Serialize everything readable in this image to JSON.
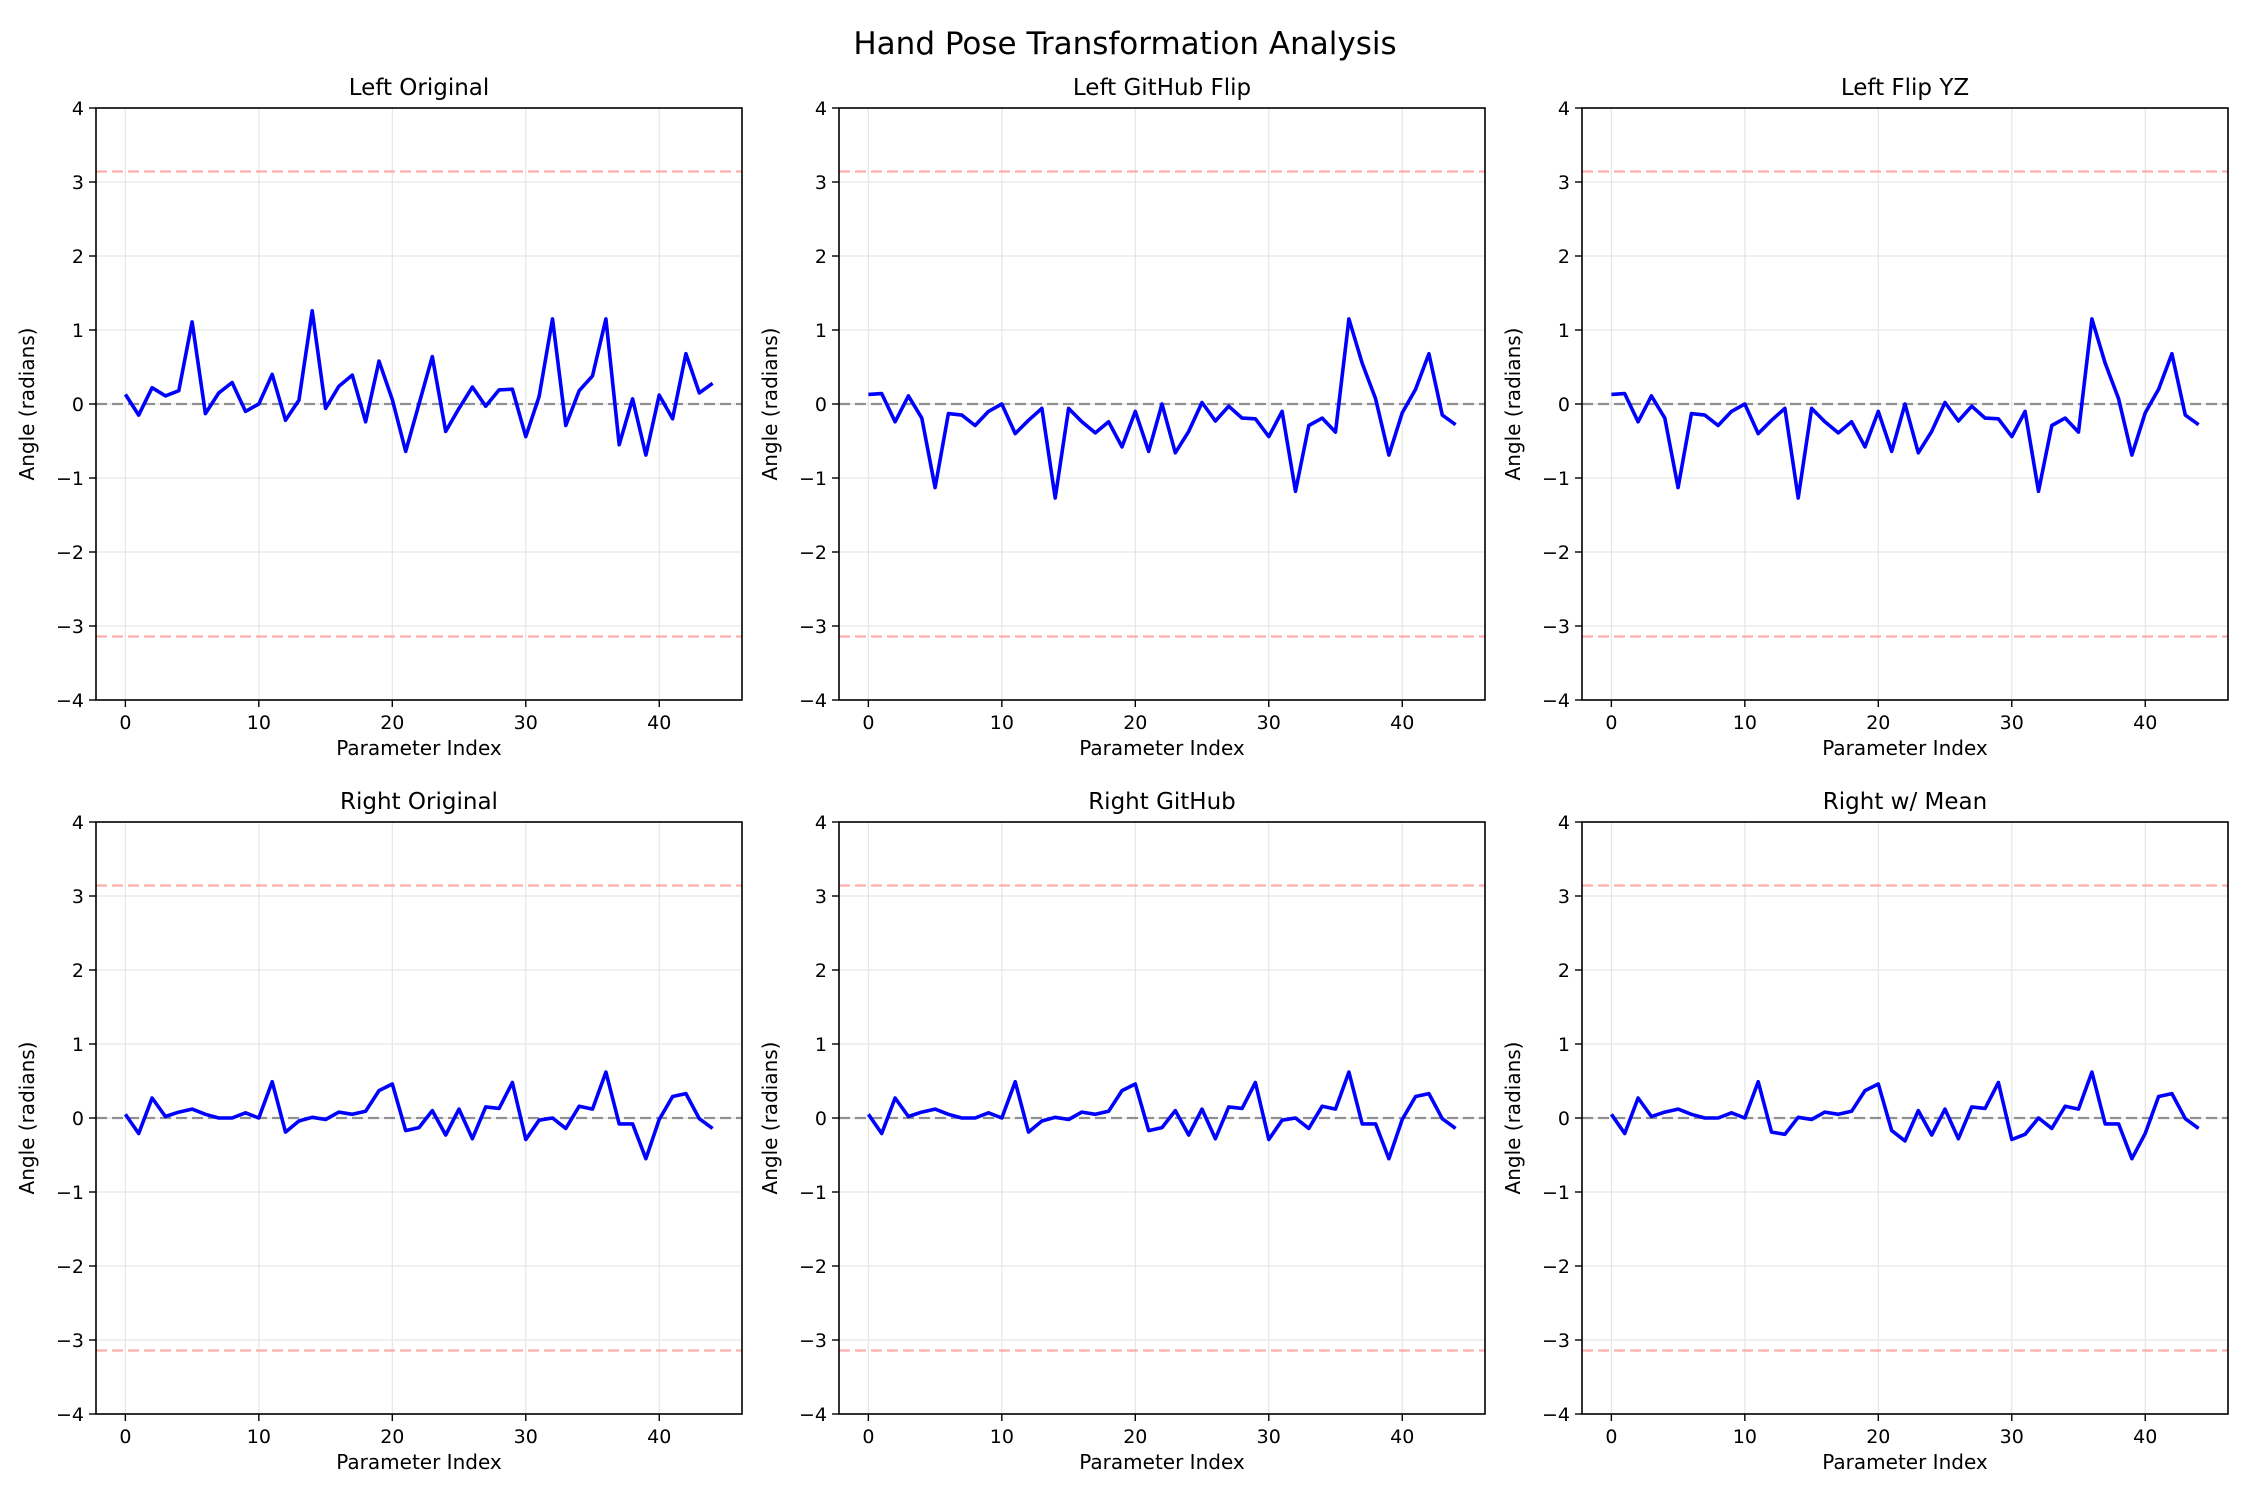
{
  "figure": {
    "title": "Hand Pose Transformation Analysis"
  },
  "colors": {
    "series": "#0000ff",
    "zero_line": "#808080",
    "pi_lines": "#ff9999",
    "grid": "#e6e6e6",
    "axes": "#000000"
  },
  "chart_data": [
    {
      "type": "line",
      "title": "Left Original",
      "xlabel": "Parameter Index",
      "ylabel": "Angle (radians)",
      "xlim": [
        -2.2,
        46.2
      ],
      "ylim": [
        -4,
        4
      ],
      "xticks": [
        0,
        10,
        20,
        30,
        40
      ],
      "yticks": [
        -4,
        -3,
        -2,
        -1,
        0,
        1,
        2,
        3,
        4
      ],
      "grid": true,
      "reference_lines": [
        {
          "y": 0,
          "style": "dashed",
          "color": "gray"
        },
        {
          "y": 3.14159,
          "style": "dashed",
          "color": "red"
        },
        {
          "y": -3.14159,
          "style": "dashed",
          "color": "red"
        }
      ],
      "series": [
        {
          "color": "blue",
          "values": [
            0.13,
            -0.15,
            0.22,
            0.11,
            0.18,
            1.11,
            -0.13,
            0.15,
            0.29,
            -0.1,
            0.0,
            0.4,
            -0.22,
            0.05,
            1.26,
            -0.06,
            0.24,
            0.39,
            -0.24,
            0.58,
            0.06,
            -0.64,
            0.0,
            0.64,
            -0.37,
            -0.06,
            0.23,
            -0.03,
            0.19,
            0.2,
            -0.44,
            0.1,
            1.15,
            -0.29,
            0.18,
            0.38,
            1.15,
            -0.55,
            0.07,
            -0.69,
            0.12,
            -0.2,
            0.68,
            0.15,
            0.28
          ]
        }
      ]
    },
    {
      "type": "line",
      "title": "Left GitHub Flip",
      "xlabel": "Parameter Index",
      "ylabel": "Angle (radians)",
      "xlim": [
        -2.2,
        46.2
      ],
      "ylim": [
        -4,
        4
      ],
      "xticks": [
        0,
        10,
        20,
        30,
        40
      ],
      "yticks": [
        -4,
        -3,
        -2,
        -1,
        0,
        1,
        2,
        3,
        4
      ],
      "grid": true,
      "reference_lines": [
        {
          "y": 0,
          "style": "dashed",
          "color": "gray"
        },
        {
          "y": 3.14159,
          "style": "dashed",
          "color": "red"
        },
        {
          "y": -3.14159,
          "style": "dashed",
          "color": "red"
        }
      ],
      "series": [
        {
          "color": "blue",
          "values": [
            0.13,
            0.14,
            -0.24,
            0.11,
            -0.19,
            -1.13,
            -0.13,
            -0.15,
            -0.29,
            -0.1,
            0.0,
            -0.4,
            -0.22,
            -0.06,
            -1.27,
            -0.06,
            -0.24,
            -0.39,
            -0.24,
            -0.58,
            -0.1,
            -0.64,
            0.0,
            -0.66,
            -0.37,
            0.02,
            -0.23,
            -0.03,
            -0.19,
            -0.2,
            -0.44,
            -0.1,
            -1.18,
            -0.29,
            -0.19,
            -0.38,
            1.15,
            0.55,
            0.07,
            -0.69,
            -0.12,
            0.2,
            0.68,
            -0.15,
            -0.28
          ]
        }
      ]
    },
    {
      "type": "line",
      "title": "Left Flip YZ",
      "xlabel": "Parameter Index",
      "ylabel": "Angle (radians)",
      "xlim": [
        -2.2,
        46.2
      ],
      "ylim": [
        -4,
        4
      ],
      "xticks": [
        0,
        10,
        20,
        30,
        40
      ],
      "yticks": [
        -4,
        -3,
        -2,
        -1,
        0,
        1,
        2,
        3,
        4
      ],
      "grid": true,
      "reference_lines": [
        {
          "y": 0,
          "style": "dashed",
          "color": "gray"
        },
        {
          "y": 3.14159,
          "style": "dashed",
          "color": "red"
        },
        {
          "y": -3.14159,
          "style": "dashed",
          "color": "red"
        }
      ],
      "series": [
        {
          "color": "blue",
          "values": [
            0.13,
            0.14,
            -0.24,
            0.11,
            -0.19,
            -1.13,
            -0.13,
            -0.15,
            -0.29,
            -0.1,
            0.0,
            -0.4,
            -0.22,
            -0.06,
            -1.27,
            -0.06,
            -0.24,
            -0.39,
            -0.24,
            -0.58,
            -0.1,
            -0.64,
            0.0,
            -0.66,
            -0.37,
            0.02,
            -0.23,
            -0.03,
            -0.19,
            -0.2,
            -0.44,
            -0.1,
            -1.18,
            -0.29,
            -0.19,
            -0.38,
            1.15,
            0.55,
            0.07,
            -0.69,
            -0.12,
            0.2,
            0.68,
            -0.15,
            -0.28
          ]
        }
      ]
    },
    {
      "type": "line",
      "title": "Right Original",
      "xlabel": "Parameter Index",
      "ylabel": "Angle (radians)",
      "xlim": [
        -2.2,
        46.2
      ],
      "ylim": [
        -4,
        4
      ],
      "xticks": [
        0,
        10,
        20,
        30,
        40
      ],
      "yticks": [
        -4,
        -3,
        -2,
        -1,
        0,
        1,
        2,
        3,
        4
      ],
      "grid": true,
      "reference_lines": [
        {
          "y": 0,
          "style": "dashed",
          "color": "gray"
        },
        {
          "y": 3.14159,
          "style": "dashed",
          "color": "red"
        },
        {
          "y": -3.14159,
          "style": "dashed",
          "color": "red"
        }
      ],
      "series": [
        {
          "color": "blue",
          "values": [
            0.05,
            -0.21,
            0.27,
            0.02,
            0.08,
            0.12,
            0.05,
            0.0,
            0.0,
            0.07,
            0.0,
            0.49,
            -0.19,
            -0.04,
            0.01,
            -0.02,
            0.08,
            0.05,
            0.09,
            0.37,
            0.46,
            -0.17,
            -0.13,
            0.1,
            -0.23,
            0.12,
            -0.28,
            0.15,
            0.13,
            0.48,
            -0.29,
            -0.03,
            0.0,
            -0.14,
            0.16,
            0.12,
            0.62,
            -0.08,
            -0.08,
            -0.55,
            -0.02,
            0.29,
            0.33,
            -0.01,
            -0.14
          ]
        }
      ]
    },
    {
      "type": "line",
      "title": "Right GitHub",
      "xlabel": "Parameter Index",
      "ylabel": "Angle (radians)",
      "xlim": [
        -2.2,
        46.2
      ],
      "ylim": [
        -4,
        4
      ],
      "xticks": [
        0,
        10,
        20,
        30,
        40
      ],
      "yticks": [
        -4,
        -3,
        -2,
        -1,
        0,
        1,
        2,
        3,
        4
      ],
      "grid": true,
      "reference_lines": [
        {
          "y": 0,
          "style": "dashed",
          "color": "gray"
        },
        {
          "y": 3.14159,
          "style": "dashed",
          "color": "red"
        },
        {
          "y": -3.14159,
          "style": "dashed",
          "color": "red"
        }
      ],
      "series": [
        {
          "color": "blue",
          "values": [
            0.05,
            -0.21,
            0.27,
            0.02,
            0.08,
            0.12,
            0.05,
            0.0,
            0.0,
            0.07,
            0.0,
            0.49,
            -0.19,
            -0.04,
            0.01,
            -0.02,
            0.08,
            0.05,
            0.09,
            0.37,
            0.46,
            -0.17,
            -0.13,
            0.1,
            -0.23,
            0.12,
            -0.28,
            0.15,
            0.13,
            0.48,
            -0.29,
            -0.03,
            0.0,
            -0.14,
            0.16,
            0.12,
            0.62,
            -0.08,
            -0.08,
            -0.55,
            -0.02,
            0.29,
            0.33,
            -0.01,
            -0.14
          ]
        }
      ]
    },
    {
      "type": "line",
      "title": "Right w/ Mean",
      "xlabel": "Parameter Index",
      "ylabel": "Angle (radians)",
      "xlim": [
        -2.2,
        46.2
      ],
      "ylim": [
        -4,
        4
      ],
      "xticks": [
        0,
        10,
        20,
        30,
        40
      ],
      "yticks": [
        -4,
        -3,
        -2,
        -1,
        0,
        1,
        2,
        3,
        4
      ],
      "grid": true,
      "reference_lines": [
        {
          "y": 0,
          "style": "dashed",
          "color": "gray"
        },
        {
          "y": 3.14159,
          "style": "dashed",
          "color": "red"
        },
        {
          "y": -3.14159,
          "style": "dashed",
          "color": "red"
        }
      ],
      "series": [
        {
          "color": "blue",
          "values": [
            0.05,
            -0.21,
            0.27,
            0.02,
            0.08,
            0.12,
            0.05,
            0.0,
            0.0,
            0.07,
            0.0,
            0.49,
            -0.19,
            -0.22,
            0.01,
            -0.02,
            0.08,
            0.05,
            0.09,
            0.37,
            0.46,
            -0.17,
            -0.31,
            0.1,
            -0.23,
            0.12,
            -0.28,
            0.15,
            0.13,
            0.48,
            -0.29,
            -0.22,
            0.0,
            -0.14,
            0.16,
            0.12,
            0.62,
            -0.08,
            -0.08,
            -0.55,
            -0.21,
            0.29,
            0.33,
            -0.01,
            -0.14
          ]
        }
      ]
    }
  ]
}
